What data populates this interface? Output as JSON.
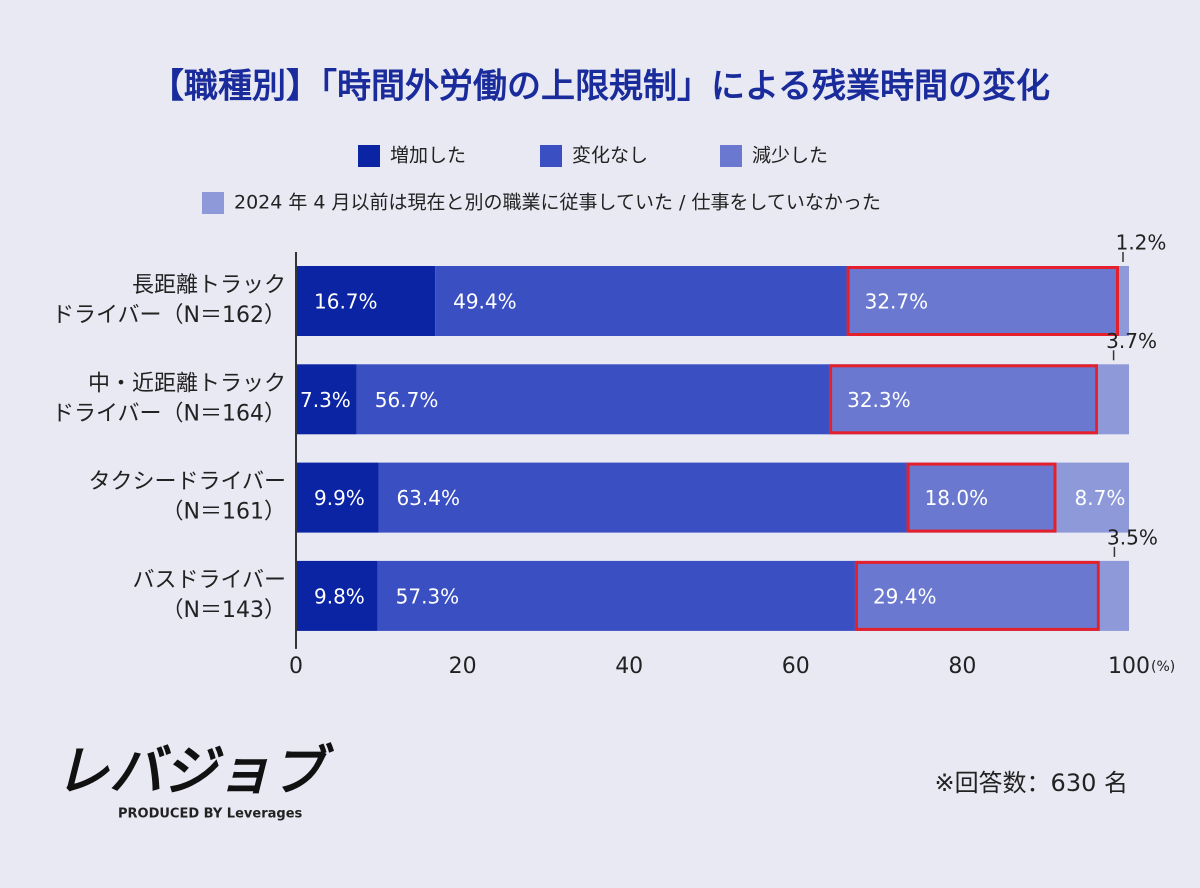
{
  "chart_data": {
    "type": "stacked_barh",
    "title": "【職種別】「時間外労働の上限規制」による残業時間の変化",
    "categories": [
      [
        "長距離トラック",
        "ドライバー（N＝162）"
      ],
      [
        "中・近距離トラック",
        "ドライバー（N＝164）"
      ],
      [
        "タクシードライバー",
        "（N＝161）"
      ],
      [
        "バスドライバー",
        "（N＝143）"
      ]
    ],
    "series": [
      {
        "name": "増加した",
        "color": "#0b24a3",
        "values": [
          16.7,
          7.3,
          9.9,
          9.8
        ],
        "value_labels": [
          "16.7%",
          "7.3%",
          "9.9%",
          "9.8%"
        ]
      },
      {
        "name": "変化なし",
        "color": "#3a4fc2",
        "values": [
          49.4,
          56.7,
          63.4,
          57.3
        ],
        "value_labels": [
          "49.4%",
          "56.7%",
          "63.4%",
          "57.3%"
        ]
      },
      {
        "name": "減少した",
        "color": "#6a79cf",
        "values": [
          32.7,
          32.3,
          18.0,
          29.4
        ],
        "value_labels": [
          "32.7%",
          "32.3%",
          "18.0%",
          "29.4%"
        ]
      },
      {
        "name": "2024 年 4 月以前は現在と別の職業に従事していた / 仕事をしていなかった",
        "color": "#8e99d9",
        "values": [
          1.2,
          3.7,
          8.7,
          3.5
        ],
        "value_labels": [
          "1.2%",
          "3.7%",
          "8.7%",
          "3.5%"
        ]
      }
    ],
    "xlim": [
      0,
      100
    ],
    "xticks": [
      0,
      20,
      40,
      60,
      80,
      100
    ],
    "xlabel": "(%)",
    "highlight_series": 2,
    "highlight_color": "#e3202b"
  },
  "logo": {
    "name": "レバジョブ",
    "tagline": "PRODUCED BY Leverages"
  },
  "note": "※回答数：630 名"
}
